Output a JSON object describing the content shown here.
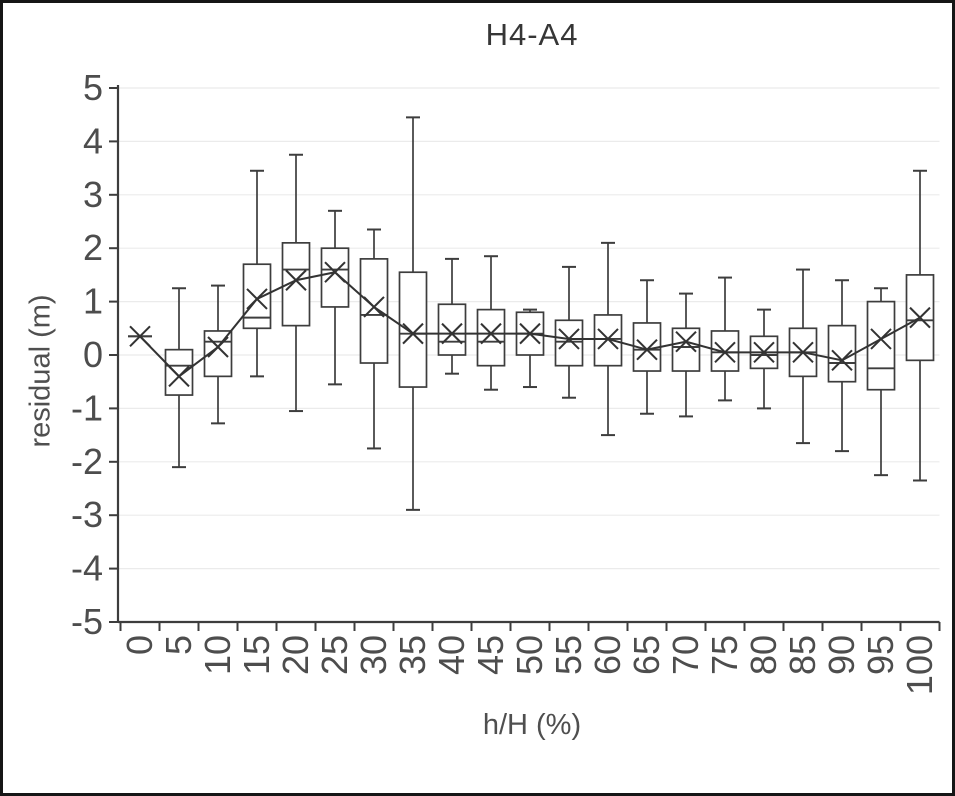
{
  "page": {
    "background": "#ffffff",
    "border_color": "#161616"
  },
  "chart_data": {
    "type": "boxplot",
    "title": "H4-A4",
    "xlabel": "h/H (%)",
    "ylabel": "residual (m)",
    "ylim": [
      -5,
      5
    ],
    "ytick_step": 1,
    "grid": true,
    "legend": "none",
    "y_tick_labels": [
      "5",
      "4",
      "3",
      "2",
      "1",
      "0",
      "-1",
      "-2",
      "-3",
      "-4",
      "-5"
    ],
    "categories": [
      "0",
      "5",
      "10",
      "15",
      "20",
      "25",
      "30",
      "35",
      "40",
      "45",
      "50",
      "55",
      "60",
      "65",
      "70",
      "75",
      "80",
      "85",
      "90",
      "95",
      "100"
    ],
    "series": [
      {
        "name": "whisker_low",
        "values": [
          0.35,
          -2.1,
          -1.28,
          -0.4,
          -1.05,
          -0.55,
          -1.75,
          -2.9,
          -0.35,
          -0.65,
          -0.6,
          -0.8,
          -1.5,
          -1.1,
          -1.15,
          -0.85,
          -1.0,
          -1.65,
          -1.8,
          -2.25,
          -2.35
        ]
      },
      {
        "name": "q1",
        "values": [
          0.35,
          -0.75,
          -0.4,
          0.5,
          0.55,
          0.9,
          -0.15,
          -0.6,
          0.0,
          -0.2,
          0.0,
          -0.2,
          -0.2,
          -0.3,
          -0.3,
          -0.3,
          -0.25,
          -0.4,
          -0.5,
          -0.65,
          -0.1
        ]
      },
      {
        "name": "median",
        "values": [
          0.35,
          -0.2,
          0.25,
          0.7,
          1.6,
          1.6,
          0.75,
          0.4,
          0.25,
          0.25,
          0.4,
          0.25,
          0.3,
          0.1,
          0.15,
          0.05,
          0.0,
          0.05,
          -0.15,
          -0.25,
          0.65
        ]
      },
      {
        "name": "q3",
        "values": [
          0.35,
          0.1,
          0.45,
          1.7,
          2.1,
          2.0,
          1.8,
          1.55,
          0.95,
          0.85,
          0.8,
          0.65,
          0.75,
          0.6,
          0.5,
          0.45,
          0.35,
          0.5,
          0.55,
          1.0,
          1.5
        ]
      },
      {
        "name": "whisker_high",
        "values": [
          0.35,
          1.25,
          1.3,
          3.45,
          3.75,
          2.7,
          2.35,
          4.45,
          1.8,
          1.85,
          0.85,
          1.65,
          2.1,
          1.4,
          1.15,
          1.45,
          0.85,
          1.6,
          1.4,
          1.25,
          3.45
        ]
      },
      {
        "name": "mean",
        "values": [
          0.35,
          -0.4,
          0.15,
          1.05,
          1.4,
          1.55,
          0.9,
          0.4,
          0.4,
          0.4,
          0.4,
          0.3,
          0.3,
          0.1,
          0.25,
          0.05,
          0.05,
          0.05,
          -0.1,
          0.3,
          0.7
        ]
      }
    ],
    "colors": {
      "box_stroke": "#3d3d3d",
      "box_fill": "#ffffff",
      "median": "#3d3d3d",
      "mean_line": "#333333",
      "mean_marker": "#333333",
      "grid": "#ebebeb",
      "axis": "#3d3d3d",
      "tick_label": "#4d4d4d",
      "title": "#363636",
      "axis_label": "#4f4f4f"
    }
  }
}
